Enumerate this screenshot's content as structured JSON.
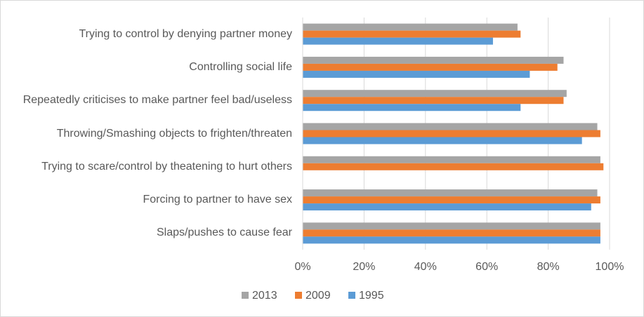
{
  "chart_data": {
    "type": "bar",
    "orientation": "horizontal",
    "categories": [
      "Trying to control by denying partner money",
      "Controlling social life",
      "Repeatedly criticises to make partner feel bad/useless",
      "Throwing/Smashing objects to frighten/threaten",
      "Trying to scare/control by theatening to hurt others",
      "Forcing to partner to have sex",
      "Slaps/pushes to cause fear"
    ],
    "series": [
      {
        "name": "2013",
        "color": "#a5a5a5",
        "values": [
          70,
          85,
          86,
          96,
          97,
          96,
          97
        ]
      },
      {
        "name": "2009",
        "color": "#ed7d31",
        "values": [
          71,
          83,
          85,
          97,
          98,
          97,
          97
        ]
      },
      {
        "name": "1995",
        "color": "#5b9bd5",
        "values": [
          62,
          74,
          71,
          91,
          null,
          94,
          97
        ]
      }
    ],
    "xlim": [
      0,
      100
    ],
    "xticks": [
      {
        "value": 0,
        "label": "0%"
      },
      {
        "value": 20,
        "label": "20%"
      },
      {
        "value": 40,
        "label": "40%"
      },
      {
        "value": 60,
        "label": "60%"
      },
      {
        "value": 80,
        "label": "80%"
      },
      {
        "value": 100,
        "label": "100%"
      }
    ],
    "grid": true,
    "legend": "bottom"
  }
}
